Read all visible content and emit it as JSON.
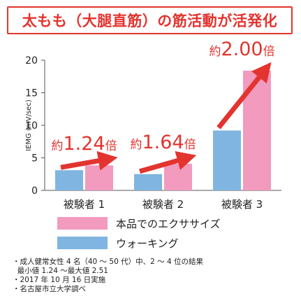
{
  "title": "太もも（大腿直筋）の筋活動が活発化",
  "chart_data": {
    "type": "bar",
    "ylabel": "IEMG (mV/sec)",
    "ylim": [
      0,
      20
    ],
    "yticks": [
      "0",
      "5",
      "10",
      "15",
      "20"
    ],
    "categories": [
      "被験者 1",
      "被験者 2",
      "被験者 3"
    ],
    "series": [
      {
        "name": "ウォーキング",
        "color": "#7fb5e0",
        "values": [
          3.1,
          2.5,
          9.2
        ]
      },
      {
        "name": "本品でのエクササイズ",
        "color": "#f29bbf",
        "values": [
          3.85,
          4.1,
          18.4
        ]
      }
    ],
    "annotations": [
      {
        "prefix": "約",
        "value": "1.24",
        "suffix": "倍"
      },
      {
        "prefix": "約",
        "value": "1.64",
        "suffix": "倍"
      },
      {
        "prefix": "約",
        "value": "2.00",
        "suffix": "倍"
      }
    ],
    "legend": [
      {
        "label": "本品でのエクササイズ",
        "color": "#f29bbf"
      },
      {
        "label": "ウォーキング",
        "color": "#7fb5e0"
      }
    ]
  },
  "notes": [
    "・成人健常女性 4 名（40 ～ 50 代）中、2 ～ 4 位の結果",
    "  最小値 1.24 ～最大値 2.51",
    "・2017 年 10 月 16 日実施",
    "・名古屋市立大学調べ"
  ]
}
